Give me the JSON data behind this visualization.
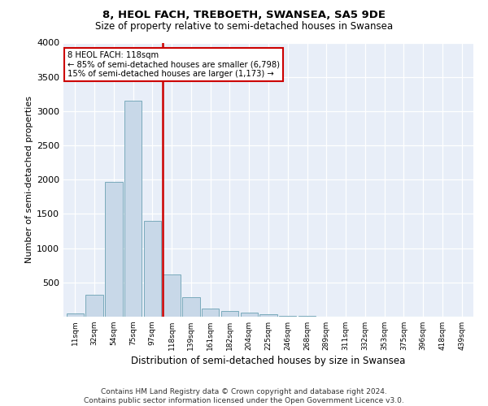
{
  "title": "8, HEOL FACH, TREBOETH, SWANSEA, SA5 9DE",
  "subtitle": "Size of property relative to semi-detached houses in Swansea",
  "xlabel": "Distribution of semi-detached houses by size in Swansea",
  "ylabel": "Number of semi-detached properties",
  "footer_line1": "Contains HM Land Registry data © Crown copyright and database right 2024.",
  "footer_line2": "Contains public sector information licensed under the Open Government Licence v3.0.",
  "bar_color": "#c8d8e8",
  "bar_edge_color": "#7aaabb",
  "annotation_box_color": "#cc0000",
  "vline_color": "#cc0000",
  "background_color": "#e8eef8",
  "annotation_line1": "8 HEOL FACH: 118sqm",
  "annotation_line2": "← 85% of semi-detached houses are smaller (6,798)",
  "annotation_line3": "15% of semi-detached houses are larger (1,173) →",
  "property_size_idx": 5,
  "categories": [
    "11sqm",
    "32sqm",
    "54sqm",
    "75sqm",
    "97sqm",
    "118sqm",
    "139sqm",
    "161sqm",
    "182sqm",
    "204sqm",
    "225sqm",
    "246sqm",
    "268sqm",
    "289sqm",
    "311sqm",
    "332sqm",
    "353sqm",
    "375sqm",
    "396sqm",
    "418sqm",
    "439sqm"
  ],
  "values": [
    50,
    320,
    1970,
    3150,
    1400,
    620,
    290,
    120,
    80,
    55,
    30,
    15,
    10,
    5,
    3,
    2,
    1,
    1,
    0,
    0,
    0
  ],
  "ylim": [
    0,
    4000
  ],
  "yticks": [
    0,
    500,
    1000,
    1500,
    2000,
    2500,
    3000,
    3500,
    4000
  ]
}
